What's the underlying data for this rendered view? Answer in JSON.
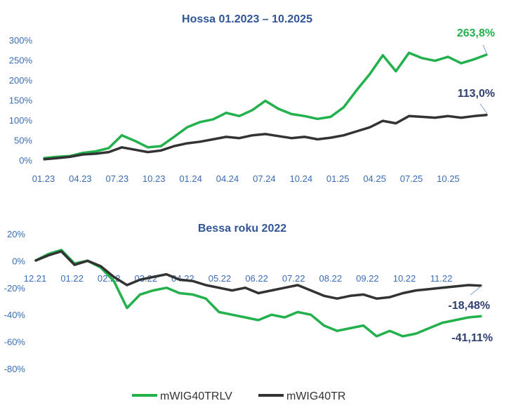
{
  "colors": {
    "green": "#22b14c",
    "dark": "#333333",
    "axis_text": "#3a6db5",
    "title": "#2f5597",
    "end_label_green": "#22b14c",
    "end_label_dark": "#2f3f6f"
  },
  "legend": {
    "position": "bottom-center",
    "items": [
      {
        "label": "mWIG40TRLV",
        "color": "#22b14c"
      },
      {
        "label": "mWIG40TR",
        "color": "#333333"
      }
    ]
  },
  "chart_data": [
    {
      "type": "line",
      "title": "Hossa 01.2023 – 10.2025",
      "x_labels": [
        "01.23",
        "04.23",
        "07.23",
        "10.23",
        "01.24",
        "04.24",
        "07.24",
        "10.24",
        "01.25",
        "04.25",
        "07.25",
        "10.25"
      ],
      "y_tick_labels": [
        "0%",
        "50%",
        "100%",
        "150%",
        "200%",
        "250%",
        "300%"
      ],
      "ylim": [
        0,
        300
      ],
      "x": [
        0,
        1,
        2,
        3,
        4,
        5,
        6,
        7,
        8,
        9,
        10,
        11,
        12,
        13,
        14,
        15,
        16,
        17,
        18,
        19,
        20,
        21,
        22,
        23,
        24,
        25,
        26,
        27,
        28,
        29,
        30,
        31,
        32,
        33,
        34
      ],
      "series": [
        {
          "name": "mWIG40TRLV",
          "color": "#22b14c",
          "values": [
            5,
            8,
            10,
            18,
            22,
            30,
            62,
            48,
            32,
            35,
            58,
            82,
            95,
            102,
            118,
            110,
            125,
            148,
            128,
            115,
            110,
            103,
            108,
            132,
            175,
            215,
            262,
            222,
            268,
            255,
            248,
            258,
            242,
            252,
            264
          ]
        },
        {
          "name": "mWIG40TR",
          "color": "#333333",
          "values": [
            2,
            5,
            8,
            14,
            16,
            20,
            32,
            26,
            20,
            24,
            35,
            42,
            46,
            52,
            58,
            55,
            62,
            65,
            60,
            55,
            58,
            52,
            56,
            62,
            72,
            82,
            98,
            92,
            110,
            108,
            106,
            110,
            106,
            110,
            113
          ]
        }
      ],
      "end_labels": [
        "263,8%",
        "113,0%"
      ]
    },
    {
      "type": "line",
      "title": "Bessa roku 2022",
      "x_labels": [
        "12.21",
        "01.22",
        "02.22",
        "03.22",
        "04.22",
        "05.22",
        "06.22",
        "07.22",
        "08.22",
        "09.22",
        "10.22",
        "11.22"
      ],
      "y_tick_labels": [
        "20%",
        "0%",
        "-20%",
        "-40%",
        "-60%",
        "-80%"
      ],
      "ylim": [
        -80,
        20
      ],
      "x": [
        0,
        1,
        2,
        3,
        4,
        5,
        6,
        7,
        8,
        9,
        10,
        11,
        12,
        13,
        14,
        15,
        16,
        17,
        18,
        19,
        20,
        21,
        22,
        23,
        24,
        25,
        26,
        27,
        28,
        29,
        30,
        31,
        32,
        33,
        34
      ],
      "series": [
        {
          "name": "mWIG40TRLV",
          "color": "#22b14c",
          "values": [
            0,
            5,
            8,
            -2,
            0,
            -5,
            -15,
            -35,
            -25,
            -22,
            -20,
            -24,
            -25,
            -28,
            -38,
            -40,
            -42,
            -44,
            -40,
            -42,
            -38,
            -40,
            -48,
            -52,
            -50,
            -48,
            -56,
            -52,
            -56,
            -54,
            -50,
            -46,
            -44,
            -42,
            -41.11
          ]
        },
        {
          "name": "mWIG40TR",
          "color": "#333333",
          "values": [
            0,
            4,
            7,
            -3,
            0,
            -4,
            -12,
            -18,
            -14,
            -12,
            -10,
            -14,
            -15,
            -18,
            -20,
            -22,
            -20,
            -24,
            -22,
            -20,
            -18,
            -22,
            -26,
            -28,
            -26,
            -25,
            -28,
            -27,
            -24,
            -22,
            -21,
            -20,
            -19,
            -18,
            -18.48
          ]
        }
      ],
      "end_labels": [
        "-18,48%",
        "-41,11%"
      ]
    }
  ]
}
